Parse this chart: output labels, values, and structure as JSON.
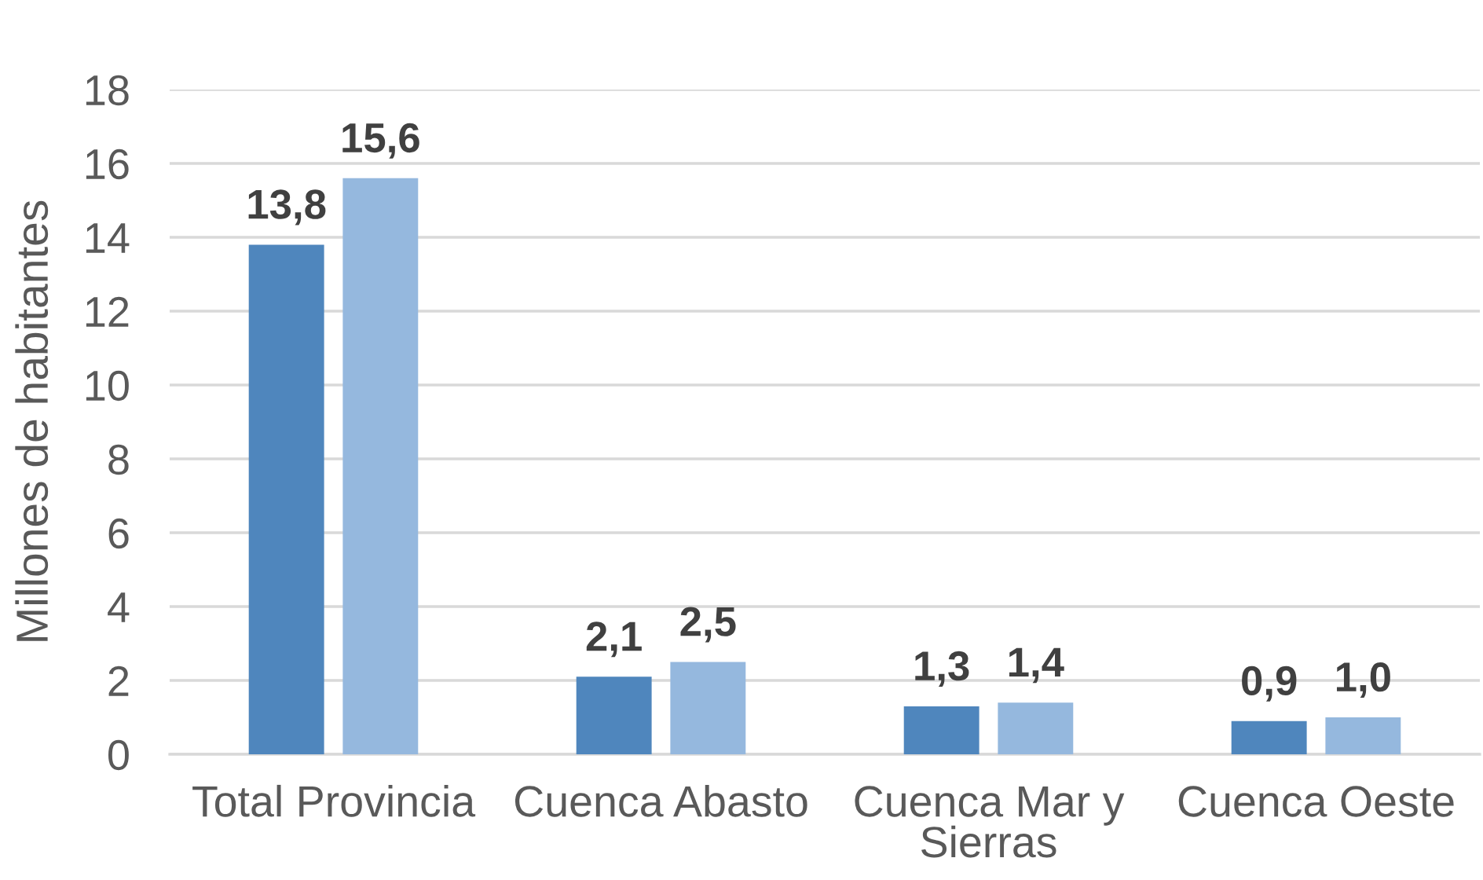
{
  "chart_data": {
    "type": "bar",
    "ylabel": "Millones de habitantes",
    "categories": [
      "Total Provincia",
      "Cuenca Abasto",
      "Cuenca Mar y\nSierras",
      "Cuenca Oeste"
    ],
    "series": [
      {
        "color": "#4f86bd",
        "values": [
          13.8,
          2.1,
          1.3,
          0.9
        ],
        "value_labels": [
          "13,8",
          "2,1",
          "1,3",
          "0,9"
        ]
      },
      {
        "color": "#95b8de",
        "values": [
          15.6,
          2.5,
          1.4,
          1.0
        ],
        "value_labels": [
          "15,6",
          "2,5",
          "1,4",
          "1,0"
        ]
      }
    ],
    "ylim": [
      0,
      18
    ],
    "yticks": [
      0,
      2,
      4,
      6,
      8,
      10,
      12,
      14,
      16,
      18
    ],
    "grid": "y"
  }
}
